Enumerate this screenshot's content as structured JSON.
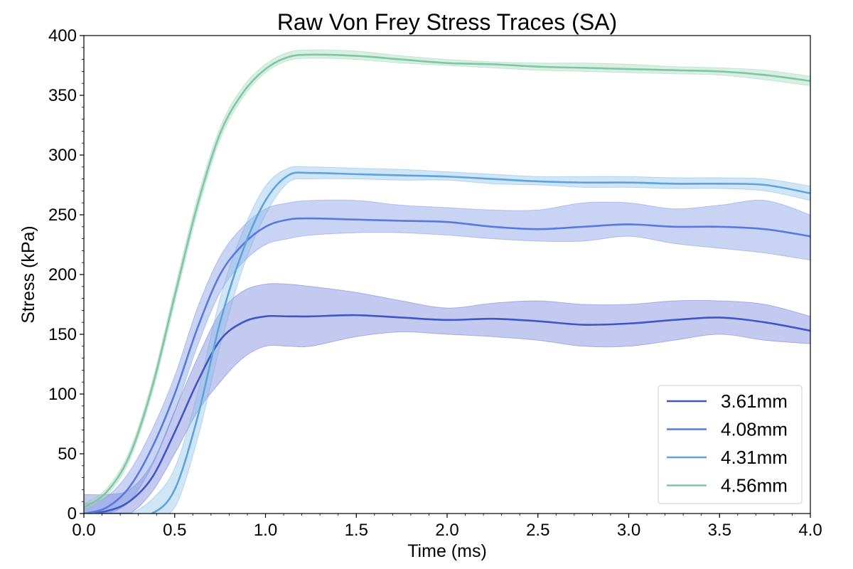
{
  "chart_data": {
    "type": "line",
    "title": "Raw Von Frey Stress Traces (SA)",
    "xlabel": "Time (ms)",
    "ylabel": "Stress (kPa)",
    "xlim": [
      0.0,
      4.0
    ],
    "ylim": [
      0,
      400
    ],
    "xticks": [
      "0.0",
      "0.5",
      "1.0",
      "1.5",
      "2.0",
      "2.5",
      "3.0",
      "3.5",
      "4.0"
    ],
    "yticks": [
      "0",
      "50",
      "100",
      "150",
      "200",
      "250",
      "300",
      "350",
      "400"
    ],
    "x_tick_values": [
      0.0,
      0.5,
      1.0,
      1.5,
      2.0,
      2.5,
      3.0,
      3.5,
      4.0
    ],
    "y_tick_values": [
      0,
      50,
      100,
      150,
      200,
      250,
      300,
      350,
      400
    ],
    "grid": false,
    "legend_position": "bottom-right",
    "x": [
      0.0,
      0.125,
      0.25,
      0.375,
      0.5,
      0.625,
      0.75,
      0.875,
      1.0,
      1.125,
      1.25,
      1.5,
      1.75,
      2.0,
      2.25,
      2.5,
      2.75,
      3.0,
      3.25,
      3.5,
      3.75,
      4.0
    ],
    "series": [
      {
        "name": "3.61mm",
        "color": "#3f55c8",
        "fill": "#6f7fd9",
        "values": [
          0,
          2,
          10,
          30,
          68,
          110,
          145,
          160,
          165,
          165,
          165,
          166,
          164,
          162,
          163,
          161,
          158,
          159,
          162,
          164,
          160,
          153
        ],
        "lower": [
          0,
          0,
          0,
          18,
          50,
          85,
          110,
          130,
          140,
          140,
          140,
          148,
          152,
          150,
          148,
          145,
          140,
          140,
          145,
          150,
          145,
          142
        ],
        "upper": [
          16,
          16,
          20,
          42,
          86,
          130,
          168,
          186,
          192,
          192,
          190,
          185,
          178,
          172,
          176,
          178,
          175,
          175,
          178,
          178,
          175,
          165
        ]
      },
      {
        "name": "4.08mm",
        "color": "#5a79dc",
        "fill": "#7f95e3",
        "values": [
          0,
          5,
          22,
          55,
          100,
          155,
          200,
          225,
          240,
          246,
          247,
          246,
          245,
          244,
          240,
          238,
          240,
          242,
          240,
          240,
          238,
          232
        ],
        "lower": [
          0,
          0,
          10,
          40,
          85,
          140,
          185,
          210,
          225,
          230,
          233,
          235,
          235,
          233,
          230,
          228,
          228,
          232,
          226,
          222,
          218,
          212
        ],
        "upper": [
          8,
          14,
          35,
          70,
          115,
          172,
          215,
          240,
          255,
          260,
          262,
          262,
          258,
          256,
          254,
          254,
          260,
          260,
          255,
          258,
          262,
          250
        ]
      },
      {
        "name": "4.31mm",
        "color": "#5da4dc",
        "fill": "#8fc2ea",
        "values": [
          0,
          0,
          0,
          0,
          20,
          80,
          160,
          220,
          262,
          283,
          285,
          284,
          283,
          282,
          280,
          278,
          277,
          277,
          276,
          276,
          275,
          268
        ],
        "lower": [
          0,
          0,
          0,
          0,
          5,
          62,
          140,
          205,
          250,
          277,
          280,
          280,
          279,
          279,
          276,
          275,
          273,
          273,
          272,
          272,
          270,
          262
        ],
        "upper": [
          0,
          0,
          0,
          12,
          38,
          100,
          180,
          236,
          274,
          289,
          290,
          289,
          288,
          286,
          284,
          282,
          282,
          282,
          281,
          281,
          280,
          274
        ]
      },
      {
        "name": "4.56mm",
        "color": "#7fc6a5",
        "fill": "#a4d8bd",
        "values": [
          5,
          18,
          48,
          105,
          182,
          258,
          318,
          352,
          372,
          382,
          384,
          383,
          380,
          377,
          376,
          374,
          373,
          372,
          371,
          370,
          367,
          362
        ],
        "lower": [
          3,
          15,
          44,
          100,
          176,
          252,
          313,
          348,
          369,
          379,
          381,
          380,
          377,
          375,
          373,
          371,
          370,
          369,
          368,
          367,
          363,
          358
        ],
        "upper": [
          8,
          21,
          52,
          110,
          188,
          264,
          323,
          357,
          376,
          386,
          388,
          387,
          383,
          380,
          378,
          377,
          377,
          376,
          374,
          373,
          371,
          366
        ]
      }
    ]
  }
}
